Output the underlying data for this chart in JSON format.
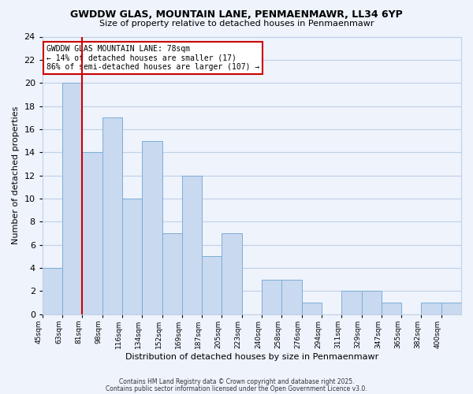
{
  "title": "GWDDW GLAS, MOUNTAIN LANE, PENMAENMAWR, LL34 6YP",
  "subtitle": "Size of property relative to detached houses in Penmaenmawr",
  "xlabel": "Distribution of detached houses by size in Penmaenmawr",
  "ylabel": "Number of detached properties",
  "bar_color": "#c9d9f0",
  "bar_edge_color": "#7aaed6",
  "grid_color": "#c0d0e8",
  "bg_color": "#eef3fc",
  "vline_color": "#cc0000",
  "vline_bin_index": 2,
  "annotation_box_text": "GWDDW GLAS MOUNTAIN LANE: 78sqm\n← 14% of detached houses are smaller (17)\n86% of semi-detached houses are larger (107) →",
  "annotation_box_color": "#cc0000",
  "annotation_box_fill": "#ffffff",
  "footer_line1": "Contains HM Land Registry data © Crown copyright and database right 2025.",
  "footer_line2": "Contains public sector information licensed under the Open Government Licence v3.0.",
  "counts": [
    4,
    20,
    14,
    17,
    10,
    15,
    7,
    12,
    5,
    7,
    0,
    3,
    3,
    1,
    0,
    2,
    2,
    1,
    0,
    1,
    1
  ],
  "ylim": [
    0,
    24
  ],
  "yticks": [
    0,
    2,
    4,
    6,
    8,
    10,
    12,
    14,
    16,
    18,
    20,
    22,
    24
  ],
  "xtick_labels": [
    "45sqm",
    "63sqm",
    "81sqm",
    "98sqm",
    "116sqm",
    "134sqm",
    "152sqm",
    "169sqm",
    "187sqm",
    "205sqm",
    "223sqm",
    "240sqm",
    "258sqm",
    "276sqm",
    "294sqm",
    "311sqm",
    "329sqm",
    "347sqm",
    "365sqm",
    "382sqm",
    "400sqm"
  ]
}
